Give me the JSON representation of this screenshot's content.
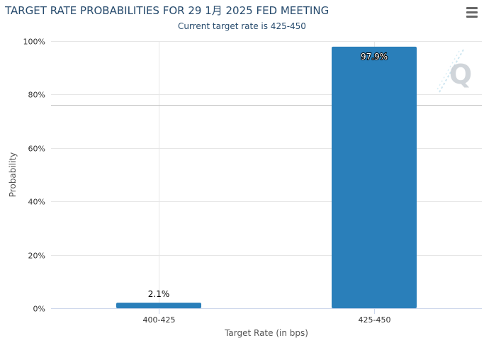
{
  "header": {
    "title": "TARGET RATE PROBABILITIES FOR 29 1月 2025 FED MEETING",
    "subtitle": "Current target rate is 425-450"
  },
  "menu": {
    "icon": "hamburger-menu-icon"
  },
  "watermark": {
    "icon": "q-logo-icon",
    "text": "Q"
  },
  "colors": {
    "bar": "#2a7fba",
    "grid": "#e6e6e6",
    "reference_line": "#c0c0c0",
    "title": "#274b6d"
  },
  "chart_data": {
    "type": "bar",
    "title": "TARGET RATE PROBABILITIES FOR 29 1月 2025 FED MEETING",
    "subtitle": "Current target rate is 425-450",
    "categories": [
      "400-425",
      "425-450"
    ],
    "values": [
      2.1,
      97.9
    ],
    "data_labels": [
      "2.1%",
      "97.9%"
    ],
    "xlabel": "Target Rate (in bps)",
    "ylabel": "Probability",
    "ylim": [
      0,
      100
    ],
    "yticks": [
      0,
      20,
      40,
      60,
      80,
      100
    ],
    "ytick_labels": [
      "0%",
      "20%",
      "40%",
      "60%",
      "80%",
      "100%"
    ],
    "reference_line_value": 76,
    "grid": true,
    "legend": "none"
  }
}
